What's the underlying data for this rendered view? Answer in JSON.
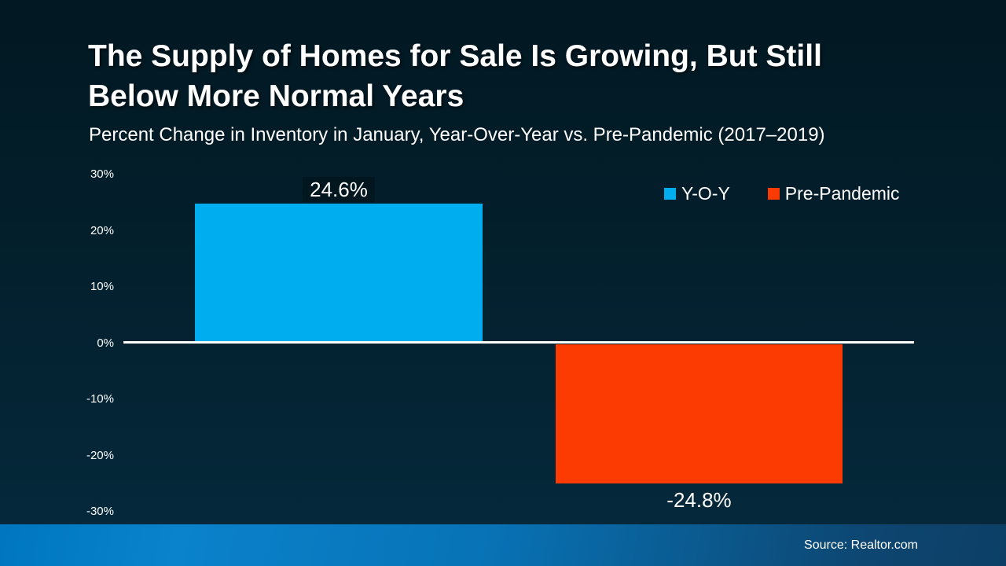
{
  "header": {
    "title_lines": [
      "The Supply of Homes for Sale Is Growing, But Still",
      "Below More Normal Years"
    ],
    "subtitle": "Percent Change in Inventory in January, Year-Over-Year vs. Pre-Pandemic (2017–2019)"
  },
  "chart_data": {
    "type": "bar",
    "title": "The Supply of Homes for Sale Is Growing, But Still Below More Normal Years",
    "subtitle": "Percent Change in Inventory in January, Year-Over-Year vs. Pre-Pandemic (2017–2019)",
    "categories": [
      "Y-O-Y",
      "Pre-Pandemic"
    ],
    "values": [
      24.6,
      -24.8
    ],
    "series": [
      {
        "name": "Y-O-Y",
        "value": 24.6,
        "color": "#00adef"
      },
      {
        "name": "Pre-Pandemic",
        "value": -24.8,
        "color": "#fb3b01"
      }
    ],
    "data_labels": [
      "24.6%",
      "-24.8%"
    ],
    "yticks": [
      "30%",
      "20%",
      "10%",
      "0%",
      "-10%",
      "-20%",
      "-30%"
    ],
    "ylim": [
      -30,
      30
    ],
    "xlabel": "",
    "ylabel": "",
    "grid": false,
    "zero_line_color": "#ffffff",
    "legend": [
      {
        "label": "Y-O-Y",
        "color": "#00adef"
      },
      {
        "label": "Pre-Pandemic",
        "color": "#fb3b01"
      }
    ],
    "legend_position": "top-right"
  },
  "footer": {
    "source": "Source: Realtor.com"
  },
  "colors": {
    "background_top": "#021822",
    "background_bottom": "#052a3d",
    "footer_left": "#0076c0",
    "footer_right": "#0d3f66",
    "text": "#ffffff"
  }
}
